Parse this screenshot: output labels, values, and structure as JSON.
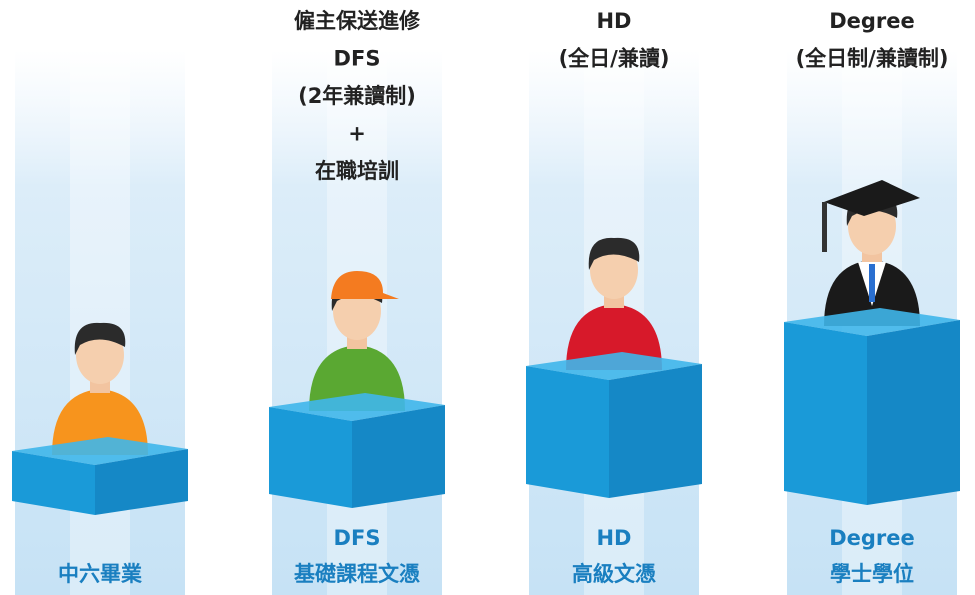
{
  "columns": [
    {
      "top": [],
      "bottom": [
        "中六畢業"
      ]
    },
    {
      "top": [
        "僱主保送進修",
        "DFS",
        "(2年兼讀制)",
        "+",
        "在職培訓"
      ],
      "bottom": [
        "DFS",
        "基礎課程文憑"
      ]
    },
    {
      "top": [
        "HD",
        "(全日/兼讀)"
      ],
      "bottom": [
        "HD",
        "高級文憑"
      ]
    },
    {
      "top": [
        "Degree",
        "(全日制/兼讀制)"
      ],
      "bottom": [
        "Degree",
        "學士學位"
      ]
    }
  ]
}
